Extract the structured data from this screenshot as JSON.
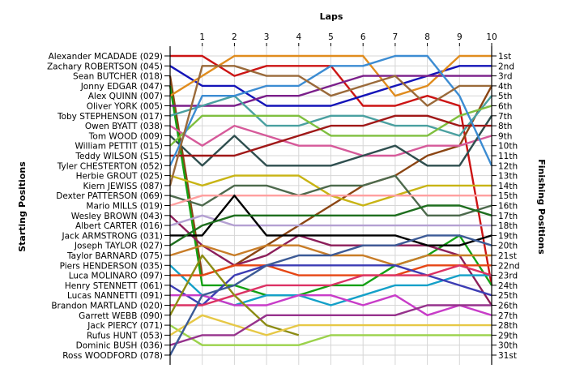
{
  "chart_data": {
    "type": "line",
    "title": "Laps",
    "xlabel": "Laps",
    "ylabel_left": "Starting Positions",
    "ylabel_right": "Finishing Positions",
    "x": [
      0,
      1,
      2,
      3,
      4,
      5,
      6,
      7,
      8,
      9,
      10
    ],
    "x_tick_labels": [
      "1",
      "2",
      "3",
      "4",
      "5",
      "6",
      "7",
      "8",
      "9",
      "10"
    ],
    "y_positions": 31,
    "grid": true,
    "finishing_labels": [
      "1st",
      "2nd",
      "3rd",
      "4th",
      "5th",
      "6th",
      "7th",
      "8th",
      "9th",
      "10th",
      "11th",
      "12th",
      "13th",
      "14th",
      "15th",
      "16th",
      "17th",
      "18th",
      "19th",
      "20th",
      "21st",
      "22nd",
      "23rd",
      "24th",
      "25th",
      "26th",
      "27th",
      "28th",
      "29th",
      "30th",
      "31st"
    ],
    "series": [
      {
        "name": "Alexander MCADADE (029)",
        "color": "#cc1414",
        "positions": [
          1,
          1,
          3,
          2,
          2,
          2,
          6,
          6,
          5,
          6,
          24
        ]
      },
      {
        "name": "Zachary ROBERTSON (045)",
        "color": "#1414b8",
        "positions": [
          2,
          4,
          4,
          6,
          6,
          6,
          5,
          4,
          3,
          2,
          2
        ]
      },
      {
        "name": "Sean BUTCHER (018)",
        "color": "#8b4513",
        "positions": [
          3,
          23,
          22,
          20,
          18,
          16,
          14,
          13,
          11,
          10,
          4
        ]
      },
      {
        "name": "Jonny EDGAR (047)",
        "color": "#14a014",
        "positions": [
          4,
          24,
          24,
          25,
          25,
          24,
          24,
          22,
          21,
          19,
          24
        ]
      },
      {
        "name": "Alex QUINN (007)",
        "color": "#e08c1e",
        "positions": [
          5,
          3,
          1,
          1,
          1,
          1,
          1,
          5,
          4,
          1,
          1
        ]
      },
      {
        "name": "Oliver YORK (005)",
        "color": "#7b1f8a",
        "positions": [
          6,
          6,
          6,
          5,
          5,
          4,
          3,
          3,
          3,
          3,
          3
        ]
      },
      {
        "name": "Toby STEPHENSON (017)",
        "color": "#4aa0a0",
        "positions": [
          7,
          6,
          5,
          8,
          8,
          7,
          7,
          8,
          8,
          9,
          5
        ]
      },
      {
        "name": "Owen BYATT (038)",
        "color": "#d65a9a",
        "positions": [
          8,
          10,
          8,
          9,
          10,
          10,
          11,
          11,
          10,
          10,
          9
        ]
      },
      {
        "name": "Tom WOOD (009)",
        "color": "#2f4f4f",
        "positions": [
          9,
          12,
          9,
          12,
          12,
          12,
          11,
          10,
          12,
          12,
          7
        ]
      },
      {
        "name": "William PETTIT (015)",
        "color": "#7fbf3f",
        "positions": [
          10,
          7,
          7,
          7,
          7,
          9,
          9,
          9,
          9,
          7,
          6
        ]
      },
      {
        "name": "Teddy WILSON (S15)",
        "color": "#a01818",
        "positions": [
          11,
          11,
          11,
          10,
          9,
          8,
          8,
          7,
          7,
          8,
          8
        ]
      },
      {
        "name": "Tyler CHESTERTON (052)",
        "color": "#3c8cd2",
        "positions": [
          12,
          5,
          5,
          4,
          4,
          2,
          2,
          1,
          1,
          5,
          12
        ]
      },
      {
        "name": "Herbie GROUT (025)",
        "color": "#c8b414",
        "positions": [
          13,
          14,
          13,
          13,
          13,
          15,
          16,
          15,
          14,
          14,
          14
        ]
      },
      {
        "name": "Kiern JEWISS (087)",
        "color": "#9a6a3a",
        "positions": [
          14,
          2,
          2,
          3,
          3,
          5,
          4,
          3,
          6,
          4,
          4
        ]
      },
      {
        "name": "Dexter PATTERSON (069)",
        "color": "#4d6a4d",
        "positions": [
          15,
          16,
          14,
          14,
          15,
          14,
          14,
          13,
          17,
          17,
          16
        ]
      },
      {
        "name": "Mario MILLS (019)",
        "color": "#ff9f9f",
        "positions": [
          16,
          15,
          15,
          15,
          15,
          15,
          15,
          15,
          15,
          15,
          15
        ]
      },
      {
        "name": "Wesley BROWN (043)",
        "color": "#8c1e5a",
        "positions": [
          17,
          20,
          22,
          21,
          19,
          20,
          20,
          20,
          20,
          21,
          26
        ]
      },
      {
        "name": "Albert CARTER (016)",
        "color": "#b4a0d2",
        "positions": [
          18,
          17,
          18,
          18,
          18,
          18,
          18,
          18,
          18,
          18,
          18
        ]
      },
      {
        "name": "Jack ARMSTRONG (031)",
        "color": "#000000",
        "positions": [
          19,
          19,
          15,
          19,
          19,
          19,
          19,
          19,
          20,
          20,
          19
        ]
      },
      {
        "name": "Joseph TAYLOR (027)",
        "color": "#1e6e1e",
        "positions": [
          20,
          18,
          17,
          17,
          17,
          17,
          17,
          17,
          16,
          16,
          17
        ]
      },
      {
        "name": "Taylor BARNARD (075)",
        "color": "#c87d28",
        "positions": [
          21,
          20,
          21,
          20,
          20,
          21,
          21,
          22,
          21,
          21,
          21
        ]
      },
      {
        "name": "Piers HENDERSON (035)",
        "color": "#14a0c8",
        "positions": [
          22,
          25,
          26,
          25,
          25,
          26,
          25,
          24,
          24,
          23,
          23
        ]
      },
      {
        "name": "Luca MOLINARO (097)",
        "color": "#e64614",
        "positions": [
          23,
          23,
          22,
          22,
          23,
          23,
          23,
          23,
          22,
          22,
          22
        ]
      },
      {
        "name": "Henry STENNETT (061)",
        "color": "#3c3cb4",
        "positions": [
          24,
          26,
          23,
          22,
          22,
          22,
          22,
          22,
          23,
          24,
          25
        ]
      },
      {
        "name": "Lucas NANNETTI (091)",
        "color": "#c83cc8",
        "positions": [
          25,
          25,
          26,
          26,
          25,
          25,
          26,
          25,
          27,
          26,
          27
        ]
      },
      {
        "name": "Brandon MARTLAND (020)",
        "color": "#dc3264",
        "positions": [
          26,
          26,
          25,
          24,
          24,
          24,
          23,
          23,
          23,
          22,
          23
        ]
      },
      {
        "name": "Garrett WEBB (090)",
        "color": "#8c8c14",
        "positions": [
          27,
          21,
          25,
          28,
          29,
          0,
          0,
          0,
          0,
          0,
          0
        ]
      },
      {
        "name": "Jack PIERCY (071)",
        "color": "#9bd24b",
        "positions": [
          28,
          30,
          30,
          30,
          30,
          29,
          29,
          29,
          29,
          29,
          29
        ]
      },
      {
        "name": "Rufus HUNT (053)",
        "color": "#e6c846",
        "positions": [
          29,
          27,
          28,
          29,
          28,
          28,
          28,
          28,
          28,
          28,
          28
        ]
      },
      {
        "name": "Dominic BUSH (036)",
        "color": "#96328c",
        "positions": [
          30,
          29,
          29,
          27,
          27,
          27,
          27,
          27,
          26,
          26,
          26
        ]
      },
      {
        "name": "Ross WOODFORD (078)",
        "color": "#3c5a96",
        "positions": [
          31,
          25,
          24,
          22,
          21,
          21,
          20,
          20,
          19,
          19,
          20
        ]
      }
    ]
  }
}
